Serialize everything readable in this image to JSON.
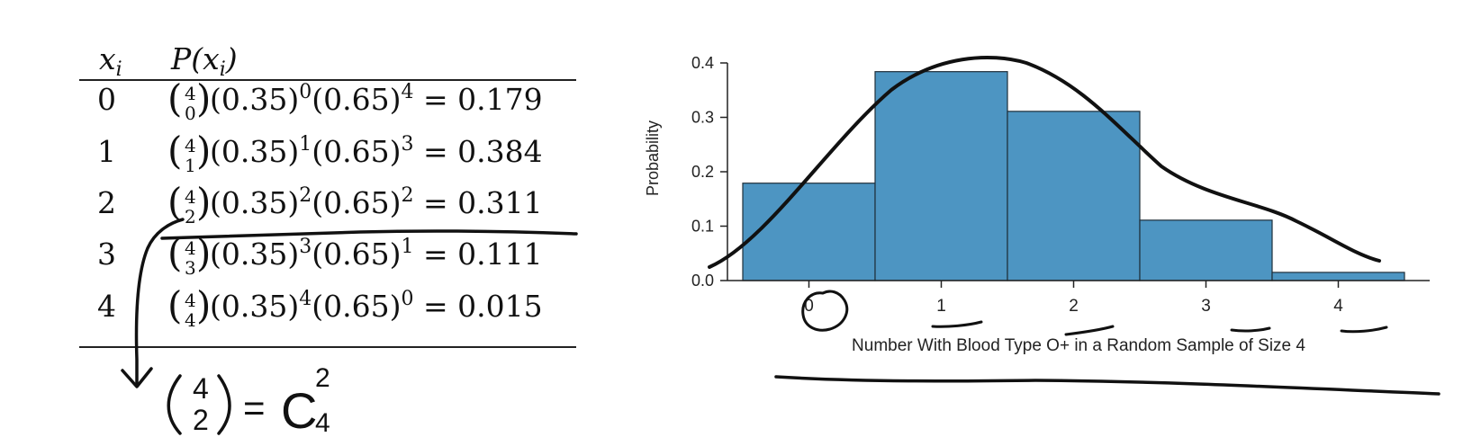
{
  "table": {
    "header_x": "x",
    "header_x_sub": "i",
    "header_p_pre": "P(x",
    "header_p_sub": "i",
    "header_p_post": ")",
    "rows": [
      {
        "x": "0",
        "n": "4",
        "k": "0",
        "p": "0.35",
        "pe": "0",
        "q": "0.65",
        "qe": "4",
        "result": "0.179"
      },
      {
        "x": "1",
        "n": "4",
        "k": "1",
        "p": "0.35",
        "pe": "1",
        "q": "0.65",
        "qe": "3",
        "result": "0.384"
      },
      {
        "x": "2",
        "n": "4",
        "k": "2",
        "p": "0.35",
        "pe": "2",
        "q": "0.65",
        "qe": "2",
        "result": "0.311"
      },
      {
        "x": "3",
        "n": "4",
        "k": "3",
        "p": "0.35",
        "pe": "3",
        "q": "0.65",
        "qe": "1",
        "result": "0.111"
      },
      {
        "x": "4",
        "n": "4",
        "k": "4",
        "p": "0.35",
        "pe": "4",
        "q": "0.65",
        "qe": "0",
        "result": "0.015"
      }
    ]
  },
  "handwriting": {
    "binom_top": "4",
    "binom_bottom": "2",
    "equals": "=",
    "c": "C",
    "c_sup": "2",
    "c_sub": "4"
  },
  "chart_data": {
    "type": "bar",
    "categories": [
      "0",
      "1",
      "2",
      "3",
      "4"
    ],
    "values": [
      0.179,
      0.384,
      0.311,
      0.111,
      0.015
    ],
    "title": "",
    "xlabel": "Number With Blood Type O+ in a Random Sample of Size 4",
    "ylabel": "Probability",
    "ylim": [
      0,
      0.4
    ],
    "yticks": [
      "0.0",
      "0.1",
      "0.2",
      "0.3",
      "0.4"
    ],
    "bar_color": "#4d95c2",
    "grid": false
  }
}
